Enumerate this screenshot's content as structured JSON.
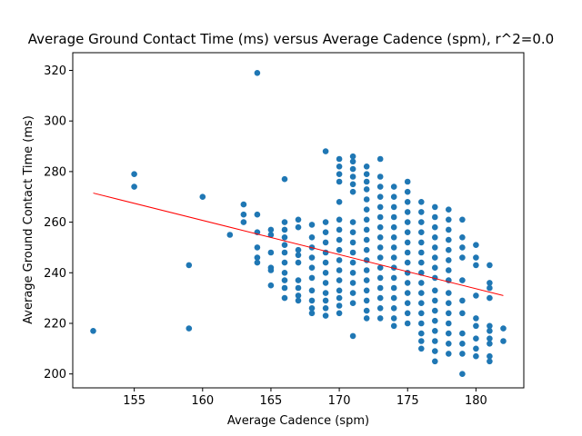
{
  "chart_data": {
    "type": "scatter",
    "title": "Average Ground Contact Time (ms) versus Average Cadence (spm), r^2=0.0",
    "xlabel": "Average Cadence (spm)",
    "ylabel": "Average Ground Contact Time (ms)",
    "xlim": [
      150.5,
      183.5
    ],
    "ylim": [
      194.5,
      327
    ],
    "xticks": [
      155,
      160,
      165,
      170,
      175,
      180
    ],
    "yticks": [
      200,
      220,
      240,
      260,
      280,
      300,
      320
    ],
    "grid": false,
    "legend": "none",
    "point_color": "#1f77b4",
    "trendline_color": "#ff0000",
    "trendline": {
      "x": [
        152,
        182
      ],
      "y": [
        271.5,
        231
      ]
    },
    "points": [
      [
        152,
        217
      ],
      [
        155,
        279
      ],
      [
        155,
        274
      ],
      [
        159,
        243
      ],
      [
        159,
        218
      ],
      [
        160,
        270
      ],
      [
        162,
        255
      ],
      [
        163,
        267
      ],
      [
        163,
        263
      ],
      [
        163,
        260
      ],
      [
        164,
        319
      ],
      [
        164,
        263
      ],
      [
        164,
        256
      ],
      [
        164,
        250
      ],
      [
        164,
        246
      ],
      [
        164,
        244
      ],
      [
        165,
        257
      ],
      [
        165,
        255
      ],
      [
        165,
        248
      ],
      [
        165,
        242
      ],
      [
        165,
        241
      ],
      [
        165,
        235
      ],
      [
        166,
        277
      ],
      [
        166,
        260
      ],
      [
        166,
        257
      ],
      [
        166,
        254
      ],
      [
        166,
        251
      ],
      [
        166,
        248
      ],
      [
        166,
        244
      ],
      [
        166,
        240
      ],
      [
        166,
        237
      ],
      [
        166,
        234
      ],
      [
        166,
        230
      ],
      [
        167,
        261
      ],
      [
        167,
        258
      ],
      [
        167,
        249
      ],
      [
        167,
        247
      ],
      [
        167,
        244
      ],
      [
        167,
        237
      ],
      [
        167,
        234
      ],
      [
        167,
        231
      ],
      [
        167,
        229
      ],
      [
        168,
        259
      ],
      [
        168,
        254
      ],
      [
        168,
        250
      ],
      [
        168,
        246
      ],
      [
        168,
        242
      ],
      [
        168,
        238
      ],
      [
        168,
        233
      ],
      [
        168,
        229
      ],
      [
        168,
        226
      ],
      [
        168,
        224
      ],
      [
        169,
        288
      ],
      [
        169,
        260
      ],
      [
        169,
        256
      ],
      [
        169,
        252
      ],
      [
        169,
        248
      ],
      [
        169,
        244
      ],
      [
        169,
        240
      ],
      [
        169,
        236
      ],
      [
        169,
        232
      ],
      [
        169,
        229
      ],
      [
        169,
        226
      ],
      [
        169,
        223
      ],
      [
        170,
        285
      ],
      [
        170,
        282
      ],
      [
        170,
        279
      ],
      [
        170,
        276
      ],
      [
        170,
        268
      ],
      [
        170,
        261
      ],
      [
        170,
        257
      ],
      [
        170,
        253
      ],
      [
        170,
        249
      ],
      [
        170,
        245
      ],
      [
        170,
        241
      ],
      [
        170,
        237
      ],
      [
        170,
        233
      ],
      [
        170,
        230
      ],
      [
        170,
        227
      ],
      [
        170,
        224
      ],
      [
        171,
        286
      ],
      [
        171,
        284
      ],
      [
        171,
        281
      ],
      [
        171,
        278
      ],
      [
        171,
        275
      ],
      [
        171,
        272
      ],
      [
        171,
        260
      ],
      [
        171,
        256
      ],
      [
        171,
        252
      ],
      [
        171,
        248
      ],
      [
        171,
        244
      ],
      [
        171,
        240
      ],
      [
        171,
        236
      ],
      [
        171,
        232
      ],
      [
        171,
        228
      ],
      [
        171,
        215
      ],
      [
        172,
        282
      ],
      [
        172,
        279
      ],
      [
        172,
        276
      ],
      [
        172,
        273
      ],
      [
        172,
        269
      ],
      [
        172,
        265
      ],
      [
        172,
        261
      ],
      [
        172,
        257
      ],
      [
        172,
        253
      ],
      [
        172,
        249
      ],
      [
        172,
        245
      ],
      [
        172,
        241
      ],
      [
        172,
        237
      ],
      [
        172,
        233
      ],
      [
        172,
        229
      ],
      [
        172,
        225
      ],
      [
        172,
        222
      ],
      [
        173,
        285
      ],
      [
        173,
        278
      ],
      [
        173,
        274
      ],
      [
        173,
        270
      ],
      [
        173,
        266
      ],
      [
        173,
        262
      ],
      [
        173,
        258
      ],
      [
        173,
        254
      ],
      [
        173,
        250
      ],
      [
        173,
        246
      ],
      [
        173,
        242
      ],
      [
        173,
        238
      ],
      [
        173,
        234
      ],
      [
        173,
        230
      ],
      [
        173,
        226
      ],
      [
        173,
        222
      ],
      [
        174,
        274
      ],
      [
        174,
        270
      ],
      [
        174,
        266
      ],
      [
        174,
        262
      ],
      [
        174,
        258
      ],
      [
        174,
        254
      ],
      [
        174,
        250
      ],
      [
        174,
        246
      ],
      [
        174,
        242
      ],
      [
        174,
        238
      ],
      [
        174,
        234
      ],
      [
        174,
        230
      ],
      [
        174,
        226
      ],
      [
        174,
        222
      ],
      [
        174,
        219
      ],
      [
        175,
        276
      ],
      [
        175,
        272
      ],
      [
        175,
        268
      ],
      [
        175,
        264
      ],
      [
        175,
        260
      ],
      [
        175,
        256
      ],
      [
        175,
        252
      ],
      [
        175,
        248
      ],
      [
        175,
        244
      ],
      [
        175,
        240
      ],
      [
        175,
        236
      ],
      [
        175,
        232
      ],
      [
        175,
        228
      ],
      [
        175,
        224
      ],
      [
        175,
        220
      ],
      [
        176,
        268
      ],
      [
        176,
        264
      ],
      [
        176,
        260
      ],
      [
        176,
        256
      ],
      [
        176,
        252
      ],
      [
        176,
        248
      ],
      [
        176,
        244
      ],
      [
        176,
        240
      ],
      [
        176,
        236
      ],
      [
        176,
        232
      ],
      [
        176,
        228
      ],
      [
        176,
        224
      ],
      [
        176,
        220
      ],
      [
        176,
        216
      ],
      [
        176,
        213
      ],
      [
        176,
        210
      ],
      [
        177,
        266
      ],
      [
        177,
        262
      ],
      [
        177,
        258
      ],
      [
        177,
        254
      ],
      [
        177,
        250
      ],
      [
        177,
        246
      ],
      [
        177,
        242
      ],
      [
        177,
        238
      ],
      [
        177,
        233
      ],
      [
        177,
        229
      ],
      [
        177,
        225
      ],
      [
        177,
        221
      ],
      [
        177,
        217
      ],
      [
        177,
        213
      ],
      [
        177,
        209
      ],
      [
        177,
        205
      ],
      [
        178,
        265
      ],
      [
        178,
        261
      ],
      [
        178,
        257
      ],
      [
        178,
        253
      ],
      [
        178,
        249
      ],
      [
        178,
        245
      ],
      [
        178,
        241
      ],
      [
        178,
        237
      ],
      [
        178,
        232
      ],
      [
        178,
        228
      ],
      [
        178,
        224
      ],
      [
        178,
        220
      ],
      [
        178,
        216
      ],
      [
        178,
        212
      ],
      [
        178,
        208
      ],
      [
        179,
        261
      ],
      [
        179,
        254
      ],
      [
        179,
        250
      ],
      [
        179,
        246
      ],
      [
        179,
        237
      ],
      [
        179,
        229
      ],
      [
        179,
        224
      ],
      [
        179,
        216
      ],
      [
        179,
        212
      ],
      [
        179,
        208
      ],
      [
        179,
        200
      ],
      [
        180,
        251
      ],
      [
        180,
        246
      ],
      [
        180,
        243
      ],
      [
        180,
        231
      ],
      [
        180,
        222
      ],
      [
        180,
        219
      ],
      [
        180,
        214
      ],
      [
        180,
        210
      ],
      [
        180,
        207
      ],
      [
        181,
        243
      ],
      [
        181,
        236
      ],
      [
        181,
        234
      ],
      [
        181,
        230
      ],
      [
        181,
        219
      ],
      [
        181,
        217
      ],
      [
        181,
        214
      ],
      [
        181,
        212
      ],
      [
        181,
        207
      ],
      [
        181,
        205
      ],
      [
        182,
        218
      ],
      [
        182,
        213
      ]
    ]
  }
}
